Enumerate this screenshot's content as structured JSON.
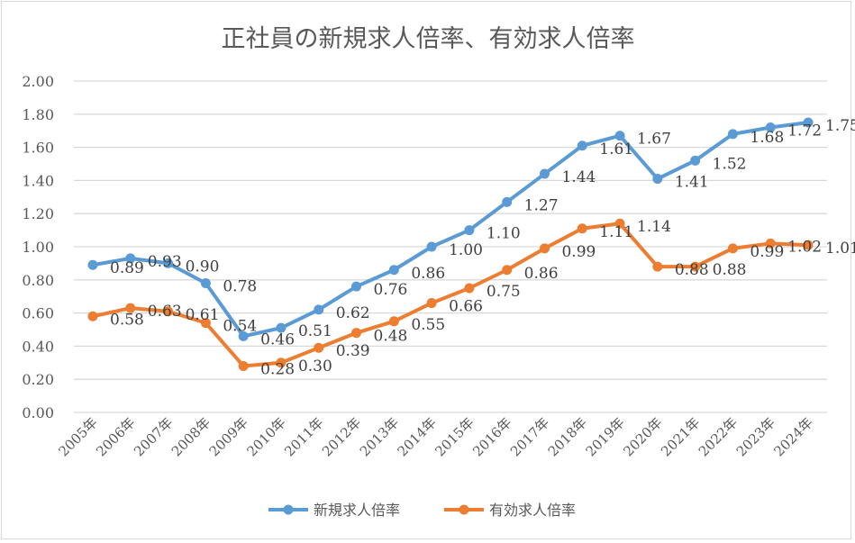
{
  "chart_data": {
    "type": "line",
    "title": "正社員の新規求人倍率、有効求人倍率",
    "categories": [
      "2005年",
      "2006年",
      "2007年",
      "2008年",
      "2009年",
      "2010年",
      "2011年",
      "2012年",
      "2013年",
      "2014年",
      "2015年",
      "2016年",
      "2017年",
      "2018年",
      "2019年",
      "2020年",
      "2021年",
      "2022年",
      "2023年",
      "2024年"
    ],
    "series": [
      {
        "name": "新規求人倍率",
        "color": "#5b9bd5",
        "values": [
          0.89,
          0.93,
          0.9,
          0.78,
          0.46,
          0.51,
          0.62,
          0.76,
          0.86,
          1.0,
          1.1,
          1.27,
          1.44,
          1.61,
          1.67,
          1.41,
          1.52,
          1.68,
          1.72,
          1.75
        ]
      },
      {
        "name": "有効求人倍率",
        "color": "#ed7d31",
        "values": [
          0.58,
          0.63,
          0.61,
          0.54,
          0.28,
          0.3,
          0.39,
          0.48,
          0.55,
          0.66,
          0.75,
          0.86,
          0.99,
          1.11,
          1.14,
          0.88,
          0.88,
          0.99,
          1.02,
          1.01
        ]
      }
    ],
    "yticks": [
      "0.00",
      "0.20",
      "0.40",
      "0.60",
      "0.80",
      "1.00",
      "1.20",
      "1.40",
      "1.60",
      "1.80",
      "2.00"
    ],
    "ylim": [
      0,
      2
    ],
    "grid": true,
    "data_labels": true,
    "legend": "bottom"
  }
}
